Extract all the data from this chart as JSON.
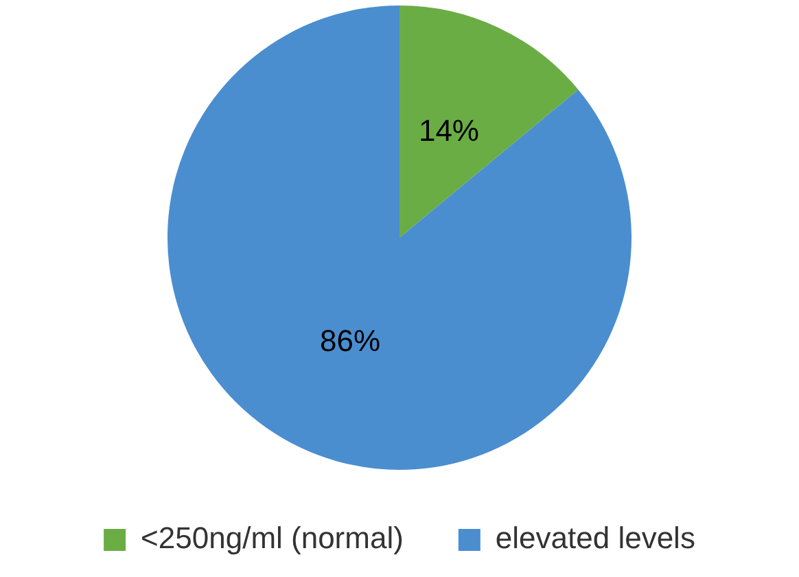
{
  "chart_data": {
    "type": "pie",
    "categories": [
      "<250ng/ml (normal)",
      "elevated levels"
    ],
    "values": [
      14,
      86
    ],
    "colors": [
      "#6aad45",
      "#4a8ed0"
    ],
    "value_labels": [
      "14%",
      "86%"
    ],
    "legend": "bottom"
  }
}
